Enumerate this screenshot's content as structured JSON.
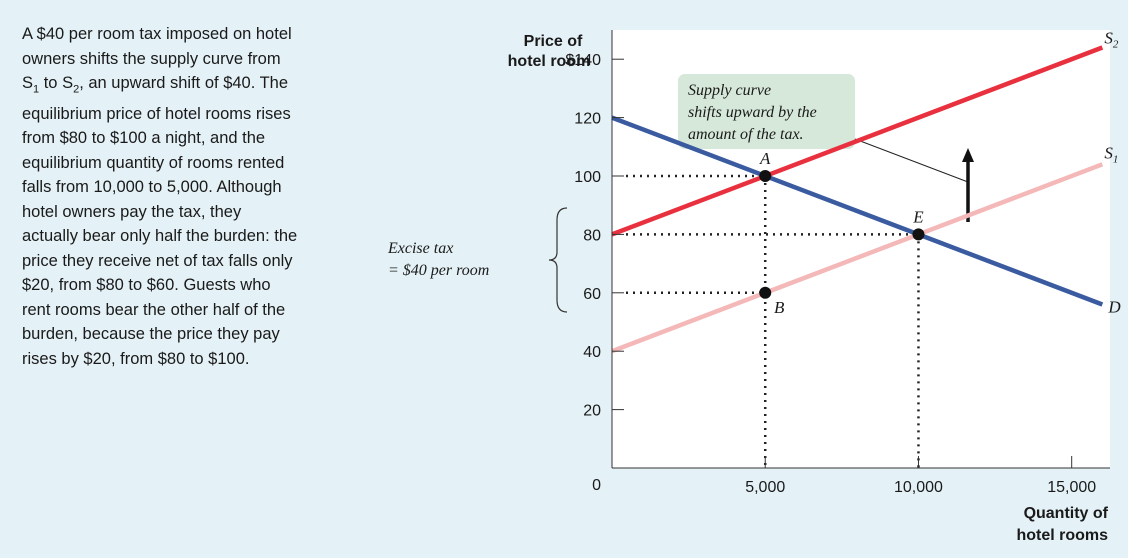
{
  "caption": {
    "line1": "A $40 per room tax imposed on hotel",
    "line2": "owners shifts the supply curve from",
    "line3_pre": "S",
    "line3_sub1": "1",
    "line3_mid": " to S",
    "line3_sub2": "2",
    "line3_post": ", an upward shift of $40. The",
    "line4": "equilibrium price of hotel rooms rises",
    "line5": "from $80 to $100 a night, and the",
    "line6": "equilibrium quantity of rooms rented",
    "line7": "falls from 10,000 to 5,000. Although",
    "line8": "hotel owners pay the tax, they",
    "line9": "actually bear only half the burden: the",
    "line10": "price they receive net of tax falls only",
    "line11": "$20, from $80 to $60. Guests who",
    "line12": "rent rooms bear the other half of the",
    "line13": "burden, because the price they pay",
    "line14": "rises by $20, from $80 to $100."
  },
  "excise_label": {
    "line1": "Excise tax",
    "line2": "= $40 per room"
  },
  "annotation": {
    "line1": "Supply curve",
    "line2": "shifts upward by the",
    "line3": "amount of the tax."
  },
  "chart_data": {
    "type": "line",
    "ylabel_line1": "Price of",
    "ylabel_line2": "hotel room",
    "xlabel_line1": "Quantity of",
    "xlabel_line2": "hotel rooms",
    "xlim": [
      0,
      16250
    ],
    "ylim": [
      0,
      150
    ],
    "y_ticks": [
      {
        "value": 140,
        "label": "$140"
      },
      {
        "value": 120,
        "label": "120"
      },
      {
        "value": 100,
        "label": "100"
      },
      {
        "value": 80,
        "label": "80"
      },
      {
        "value": 60,
        "label": "60"
      },
      {
        "value": 40,
        "label": "40"
      },
      {
        "value": 20,
        "label": "20"
      },
      {
        "value": 0,
        "label": "0"
      }
    ],
    "x_ticks": [
      {
        "value": 5000,
        "label": "5,000"
      },
      {
        "value": 10000,
        "label": "10,000"
      },
      {
        "value": 15000,
        "label": "15,000"
      }
    ],
    "series": [
      {
        "name": "D",
        "color": "#3a5ba0",
        "x": [
          0,
          16000
        ],
        "y": [
          120,
          56
        ]
      },
      {
        "name": "S1",
        "color": "#f4b8b8",
        "x": [
          0,
          16000
        ],
        "y": [
          40,
          104
        ]
      },
      {
        "name": "S2",
        "color": "#e8303e",
        "x": [
          0,
          16000
        ],
        "y": [
          80,
          144
        ]
      }
    ],
    "points": [
      {
        "name": "A",
        "x": 5000,
        "y": 100
      },
      {
        "name": "E",
        "x": 10000,
        "y": 80
      },
      {
        "name": "B",
        "x": 5000,
        "y": 60
      }
    ],
    "curve_labels": {
      "s2_pre": "S",
      "s2_sub": "2",
      "s1_pre": "S",
      "s1_sub": "1",
      "d": "D"
    }
  }
}
